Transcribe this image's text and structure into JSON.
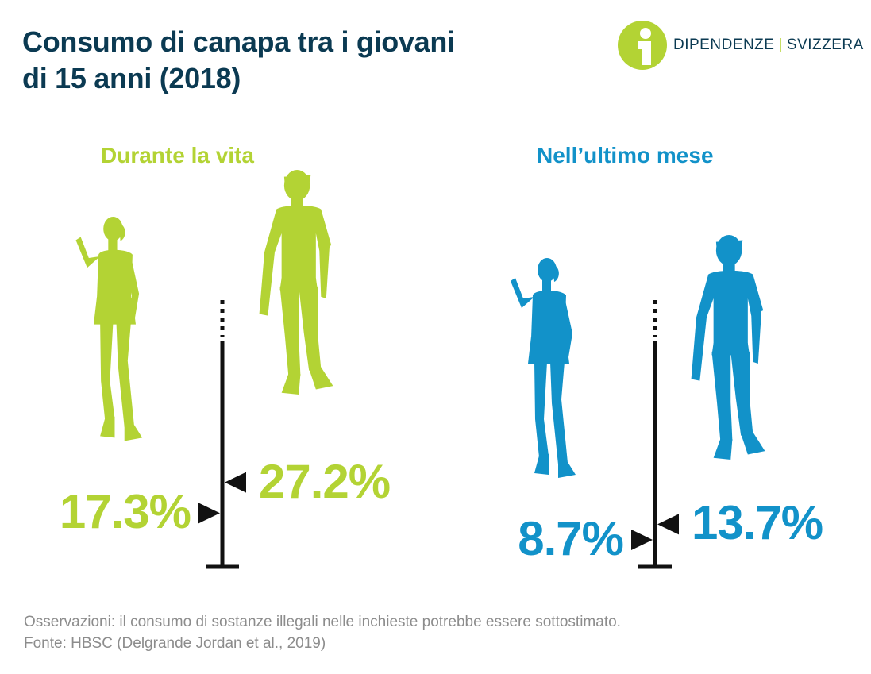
{
  "title_line1": "Consumo di canapa tra i giovani",
  "title_line2": "di 15 anni (2018)",
  "logo": {
    "left": "DIPENDENZE",
    "sep": "|",
    "right": "SVIZZERA",
    "icon": "info-person-icon"
  },
  "colors": {
    "lifetime": "#b3d334",
    "month": "#1292c9",
    "title": "#0b3a52",
    "note": "#8c8c8c"
  },
  "chart_data": [
    {
      "type": "bar",
      "title": "Durante la vita",
      "categories": [
        "female",
        "male"
      ],
      "values": [
        17.3,
        27.2
      ],
      "labels": [
        "17.3%",
        "27.2%"
      ],
      "unit": "%"
    },
    {
      "type": "bar",
      "title": "Nell’ultimo mese",
      "categories": [
        "female",
        "male"
      ],
      "values": [
        8.7,
        13.7
      ],
      "labels": [
        "8.7%",
        "13.7%"
      ],
      "unit": "%"
    }
  ],
  "notes": {
    "line1": "Osservazioni: il consumo di sostanze illegali nelle inchieste potrebbe essere sottostimato.",
    "line2": "Fonte: HBSC (Delgrande Jordan et al., 2019)"
  }
}
